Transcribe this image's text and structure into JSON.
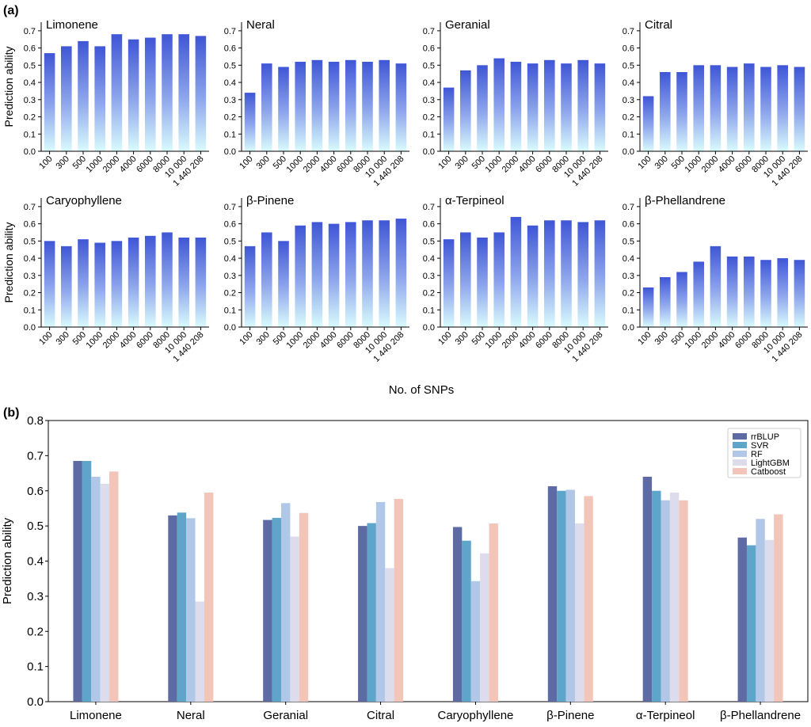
{
  "panel_labels": {
    "a": "(a)",
    "b": "(b)"
  },
  "shared_xlabel": "No. of SNPs",
  "colors": {
    "bar_top": "#3f56d6",
    "bar_bottom": "#d9fbfd",
    "axis": "#000000"
  },
  "chart_data": [
    {
      "type": "bar",
      "panel": "a",
      "xlabel": "No. of SNPs",
      "ylabel": "Prediction ability",
      "ylim": [
        0,
        0.75
      ],
      "yticks": [
        "0.0",
        "0.1",
        "0.2",
        "0.3",
        "0.4",
        "0.5",
        "0.6",
        "0.7"
      ],
      "categories": [
        "100",
        "300",
        "500",
        "1000",
        "2000",
        "4000",
        "6000",
        "8000",
        "10 000",
        "1 440 208"
      ],
      "subplots": [
        {
          "title": "Limonene",
          "show_ylabel": true,
          "values": [
            0.57,
            0.61,
            0.64,
            0.61,
            0.68,
            0.65,
            0.66,
            0.68,
            0.68,
            0.67
          ]
        },
        {
          "title": "Neral",
          "show_ylabel": false,
          "values": [
            0.34,
            0.51,
            0.49,
            0.52,
            0.53,
            0.52,
            0.53,
            0.52,
            0.53,
            0.51
          ]
        },
        {
          "title": "Geranial",
          "show_ylabel": false,
          "values": [
            0.37,
            0.47,
            0.5,
            0.54,
            0.52,
            0.51,
            0.53,
            0.51,
            0.53,
            0.51
          ]
        },
        {
          "title": "Citral",
          "show_ylabel": false,
          "values": [
            0.32,
            0.46,
            0.46,
            0.5,
            0.5,
            0.49,
            0.51,
            0.49,
            0.5,
            0.49
          ]
        },
        {
          "title": "Caryophyllene",
          "show_ylabel": true,
          "values": [
            0.5,
            0.47,
            0.51,
            0.49,
            0.5,
            0.52,
            0.53,
            0.55,
            0.52,
            0.52
          ]
        },
        {
          "title": "β-Pinene",
          "show_ylabel": false,
          "values": [
            0.47,
            0.55,
            0.5,
            0.59,
            0.61,
            0.6,
            0.61,
            0.62,
            0.62,
            0.63
          ]
        },
        {
          "title": "α-Terpineol",
          "show_ylabel": false,
          "values": [
            0.51,
            0.55,
            0.52,
            0.55,
            0.64,
            0.59,
            0.62,
            0.62,
            0.61,
            0.62
          ]
        },
        {
          "title": "β-Phellandrene",
          "show_ylabel": false,
          "values": [
            0.23,
            0.29,
            0.32,
            0.38,
            0.47,
            0.41,
            0.41,
            0.39,
            0.4,
            0.39
          ]
        }
      ]
    },
    {
      "type": "bar",
      "panel": "b",
      "xlabel": "",
      "ylabel": "Prediction ability",
      "ylim": [
        0,
        0.8
      ],
      "yticks": [
        "0.0",
        "0.1",
        "0.2",
        "0.3",
        "0.4",
        "0.5",
        "0.6",
        "0.7",
        "0.8"
      ],
      "legend_position": "top-right",
      "categories": [
        "Limonene",
        "Neral",
        "Geranial",
        "Citral",
        "Caryophyllene",
        "β-Pinene",
        "α-Terpineol",
        "β-Phellandrene"
      ],
      "series": [
        {
          "name": "rrBLUP",
          "color": "#5e6aa4",
          "values": [
            0.685,
            0.53,
            0.517,
            0.5,
            0.497,
            0.613,
            0.64,
            0.467
          ]
        },
        {
          "name": "SVR",
          "color": "#5fa5c9",
          "values": [
            0.685,
            0.538,
            0.523,
            0.508,
            0.458,
            0.6,
            0.6,
            0.445
          ]
        },
        {
          "name": "RF",
          "color": "#b0c7e8",
          "values": [
            0.64,
            0.522,
            0.565,
            0.568,
            0.343,
            0.603,
            0.573,
            0.52
          ]
        },
        {
          "name": "LightGBM",
          "color": "#dcdcec",
          "values": [
            0.62,
            0.285,
            0.47,
            0.38,
            0.422,
            0.507,
            0.595,
            0.46
          ]
        },
        {
          "name": "Catboost",
          "color": "#f2c5b8",
          "values": [
            0.655,
            0.595,
            0.537,
            0.577,
            0.507,
            0.585,
            0.573,
            0.533
          ]
        }
      ]
    }
  ]
}
